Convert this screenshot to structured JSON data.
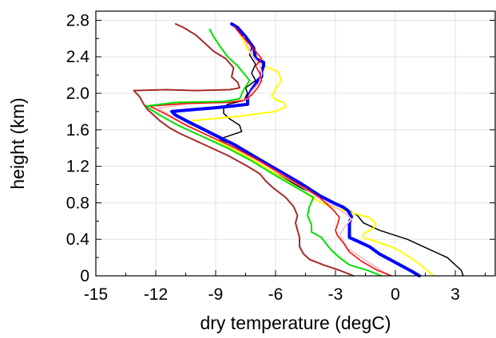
{
  "chart_data": {
    "type": "line",
    "title": "",
    "xlabel": "dry temperature (degC)",
    "ylabel": "height (km)",
    "xlim": [
      -15,
      5
    ],
    "ylim": [
      0,
      2.9
    ],
    "x_ticks": [
      -15,
      -12,
      -9,
      -6,
      -3,
      0,
      3
    ],
    "x_tick_labels": [
      "-15",
      "-12",
      "-9",
      "-6",
      "-3",
      "0",
      "3"
    ],
    "y_ticks": [
      0,
      0.4,
      0.8,
      1.2,
      1.6,
      2.0,
      2.4,
      2.8
    ],
    "y_tick_labels": [
      "0",
      "0.4",
      "0.8",
      "1.2",
      "1.6",
      "2.0",
      "2.4",
      "2.8"
    ],
    "grid": true,
    "legend": "none",
    "series": [
      {
        "color": "#000000",
        "width": 1.5,
        "points": [
          [
            3.4,
            0
          ],
          [
            3.3,
            0.06
          ],
          [
            3.1,
            0.1
          ],
          [
            2.6,
            0.2
          ],
          [
            1.6,
            0.3
          ],
          [
            0.6,
            0.4
          ],
          [
            -0.8,
            0.5
          ],
          [
            -1.6,
            0.58
          ],
          [
            -1.9,
            0.66
          ],
          [
            -2.6,
            0.75
          ],
          [
            -3.6,
            0.85
          ],
          [
            -4.6,
            0.95
          ],
          [
            -5.8,
            1.1
          ],
          [
            -7,
            1.25
          ],
          [
            -8,
            1.38
          ],
          [
            -8.8,
            1.5
          ],
          [
            -7.7,
            1.58
          ],
          [
            -7.8,
            1.65
          ],
          [
            -8.3,
            1.72
          ],
          [
            -8.6,
            1.78
          ],
          [
            -8.6,
            1.84
          ],
          [
            -8.4,
            1.88
          ],
          [
            -7.6,
            1.92
          ],
          [
            -7.4,
            2.0
          ],
          [
            -7.5,
            2.06
          ],
          [
            -7,
            2.14
          ],
          [
            -7.2,
            2.22
          ],
          [
            -7,
            2.32
          ],
          [
            -7.3,
            2.42
          ],
          [
            -7.2,
            2.5
          ],
          [
            -7.4,
            2.58
          ],
          [
            -7.6,
            2.66
          ]
        ]
      },
      {
        "color": "#ffff00",
        "width": 2,
        "points": [
          [
            1.9,
            0
          ],
          [
            1.6,
            0.06
          ],
          [
            1.2,
            0.13
          ],
          [
            0.6,
            0.22
          ],
          [
            0,
            0.3
          ],
          [
            -1,
            0.38
          ],
          [
            -1.6,
            0.42
          ],
          [
            -1.6,
            0.46
          ],
          [
            -1.1,
            0.52
          ],
          [
            -1,
            0.58
          ],
          [
            -1.3,
            0.64
          ],
          [
            -2,
            0.68
          ],
          [
            -2.6,
            0.72
          ],
          [
            -3.5,
            0.78
          ],
          [
            -4.2,
            0.86
          ],
          [
            -5,
            0.98
          ],
          [
            -6,
            1.12
          ],
          [
            -7.2,
            1.28
          ],
          [
            -8.4,
            1.42
          ],
          [
            -9.6,
            1.56
          ],
          [
            -10.3,
            1.64
          ],
          [
            -10.2,
            1.7
          ],
          [
            -7.8,
            1.75
          ],
          [
            -6,
            1.8
          ],
          [
            -5.5,
            1.85
          ],
          [
            -5.6,
            1.9
          ],
          [
            -6,
            1.93
          ],
          [
            -6.2,
            1.97
          ],
          [
            -6,
            2.05
          ],
          [
            -5.7,
            2.14
          ],
          [
            -5.9,
            2.24
          ],
          [
            -6.6,
            2.3
          ],
          [
            -7,
            2.38
          ],
          [
            -7.4,
            2.48
          ],
          [
            -7.6,
            2.58
          ],
          [
            -7.8,
            2.66
          ],
          [
            -7.9,
            2.72
          ]
        ]
      },
      {
        "color": "#0000ff",
        "width": 4,
        "points": [
          [
            1.2,
            0
          ],
          [
            0.9,
            0.04
          ],
          [
            0.4,
            0.1
          ],
          [
            -0.2,
            0.17
          ],
          [
            -0.8,
            0.24
          ],
          [
            -1.3,
            0.32
          ],
          [
            -1.9,
            0.38
          ],
          [
            -2.3,
            0.42
          ],
          [
            -2.3,
            0.5
          ],
          [
            -2.3,
            0.58
          ],
          [
            -2.2,
            0.65
          ],
          [
            -2.4,
            0.72
          ],
          [
            -2.6,
            0.75
          ],
          [
            -3.1,
            0.8
          ],
          [
            -3.8,
            0.88
          ],
          [
            -4.8,
            1.02
          ],
          [
            -5.9,
            1.16
          ],
          [
            -7,
            1.3
          ],
          [
            -8,
            1.43
          ],
          [
            -9.2,
            1.56
          ],
          [
            -10.3,
            1.68
          ],
          [
            -11,
            1.76
          ],
          [
            -11.2,
            1.8
          ],
          [
            -10.2,
            1.82
          ],
          [
            -9.1,
            1.84
          ],
          [
            -8.2,
            1.86
          ],
          [
            -7.4,
            1.88
          ],
          [
            -7.4,
            1.95
          ],
          [
            -7.2,
            2.04
          ],
          [
            -7,
            2.1
          ],
          [
            -6.9,
            2.14
          ],
          [
            -6.7,
            2.18
          ],
          [
            -6.7,
            2.24
          ],
          [
            -6.6,
            2.3
          ],
          [
            -6.6,
            2.34
          ],
          [
            -7,
            2.38
          ],
          [
            -7.1,
            2.5
          ],
          [
            -7.5,
            2.62
          ],
          [
            -7.9,
            2.72
          ],
          [
            -8.2,
            2.76
          ]
        ]
      },
      {
        "color": "#ffc0cb",
        "width": 2,
        "points": [
          [
            -0.3,
            0
          ],
          [
            -1,
            0.1
          ],
          [
            -1.7,
            0.2
          ],
          [
            -2.4,
            0.3
          ],
          [
            -2.6,
            0.38
          ],
          [
            -2.8,
            0.45
          ],
          [
            -2.5,
            0.55
          ],
          [
            -2.2,
            0.62
          ],
          [
            -2.5,
            0.68
          ],
          [
            -2.9,
            0.74
          ],
          [
            -3.6,
            0.82
          ],
          [
            -4.7,
            0.98
          ],
          [
            -5.9,
            1.14
          ],
          [
            -7.2,
            1.3
          ],
          [
            -8.4,
            1.44
          ],
          [
            -9.6,
            1.56
          ],
          [
            -10.7,
            1.68
          ],
          [
            -11.3,
            1.76
          ],
          [
            -11.9,
            1.84
          ],
          [
            -10.5,
            1.88
          ],
          [
            -8.6,
            1.9
          ],
          [
            -7.4,
            1.94
          ],
          [
            -7.2,
            2.02
          ],
          [
            -6.8,
            2.12
          ],
          [
            -6.7,
            2.22
          ],
          [
            -6.8,
            2.32
          ],
          [
            -7.2,
            2.42
          ],
          [
            -7.4,
            2.52
          ],
          [
            -7.6,
            2.62
          ]
        ]
      },
      {
        "color": "#ff0000",
        "width": 1.5,
        "points": [
          [
            -0.2,
            0
          ],
          [
            -0.9,
            0.06
          ],
          [
            -1.7,
            0.16
          ],
          [
            -2.3,
            0.26
          ],
          [
            -2.6,
            0.36
          ],
          [
            -2.9,
            0.44
          ],
          [
            -3,
            0.5
          ],
          [
            -2.9,
            0.56
          ],
          [
            -2.8,
            0.64
          ],
          [
            -3.1,
            0.72
          ],
          [
            -3.5,
            0.8
          ],
          [
            -3.8,
            0.86
          ],
          [
            -4.5,
            0.96
          ],
          [
            -5.6,
            1.1
          ],
          [
            -6.8,
            1.26
          ],
          [
            -8,
            1.4
          ],
          [
            -9.2,
            1.52
          ],
          [
            -10.4,
            1.64
          ],
          [
            -11.4,
            1.76
          ],
          [
            -12.3,
            1.86
          ],
          [
            -10.4,
            1.89
          ],
          [
            -8.4,
            1.9
          ],
          [
            -7.6,
            1.92
          ],
          [
            -7.2,
            1.98
          ],
          [
            -6.9,
            2.06
          ],
          [
            -6.7,
            2.14
          ],
          [
            -6.8,
            2.22
          ],
          [
            -7,
            2.3
          ],
          [
            -6.7,
            2.38
          ],
          [
            -7,
            2.46
          ],
          [
            -7.4,
            2.56
          ],
          [
            -7.8,
            2.66
          ],
          [
            -8.1,
            2.74
          ]
        ]
      },
      {
        "color": "#00e000",
        "width": 2,
        "points": [
          [
            -0.7,
            0
          ],
          [
            -1.4,
            0.06
          ],
          [
            -2.3,
            0.12
          ],
          [
            -2.8,
            0.2
          ],
          [
            -3.2,
            0.28
          ],
          [
            -3.5,
            0.36
          ],
          [
            -3.7,
            0.42
          ],
          [
            -4.2,
            0.48
          ],
          [
            -4.2,
            0.56
          ],
          [
            -4.4,
            0.66
          ],
          [
            -4.3,
            0.76
          ],
          [
            -4.1,
            0.86
          ],
          [
            -4.9,
            0.96
          ],
          [
            -6,
            1.1
          ],
          [
            -7.2,
            1.26
          ],
          [
            -8.4,
            1.4
          ],
          [
            -9.6,
            1.52
          ],
          [
            -10.8,
            1.64
          ],
          [
            -11.8,
            1.76
          ],
          [
            -12.5,
            1.86
          ],
          [
            -11,
            1.9
          ],
          [
            -8.6,
            1.91
          ],
          [
            -7.8,
            1.94
          ],
          [
            -7.6,
            2.04
          ],
          [
            -7.3,
            2.14
          ],
          [
            -7.6,
            2.22
          ],
          [
            -7.9,
            2.3
          ],
          [
            -8.4,
            2.4
          ],
          [
            -8.8,
            2.52
          ],
          [
            -9.1,
            2.62
          ],
          [
            -9.3,
            2.7
          ]
        ]
      },
      {
        "color": "#a52a2a",
        "width": 2,
        "points": [
          [
            -2.1,
            0
          ],
          [
            -2.8,
            0.06
          ],
          [
            -3.6,
            0.12
          ],
          [
            -4.3,
            0.18
          ],
          [
            -4.6,
            0.24
          ],
          [
            -4.8,
            0.32
          ],
          [
            -4.8,
            0.42
          ],
          [
            -4.9,
            0.5
          ],
          [
            -5,
            0.58
          ],
          [
            -4.9,
            0.66
          ],
          [
            -5.1,
            0.76
          ],
          [
            -5.5,
            0.86
          ],
          [
            -6.1,
            0.96
          ],
          [
            -6.5,
            1.04
          ],
          [
            -6.8,
            1.12
          ],
          [
            -7.4,
            1.2
          ],
          [
            -8.4,
            1.32
          ],
          [
            -9.6,
            1.44
          ],
          [
            -10.8,
            1.56
          ],
          [
            -11.3,
            1.62
          ],
          [
            -11.8,
            1.7
          ],
          [
            -12.4,
            1.82
          ],
          [
            -12.6,
            1.88
          ],
          [
            -12.8,
            1.96
          ],
          [
            -13.1,
            2.03
          ],
          [
            -11.5,
            2.04
          ],
          [
            -10,
            2.03
          ],
          [
            -8.3,
            2.04
          ],
          [
            -7.8,
            2.06
          ],
          [
            -7.9,
            2.12
          ],
          [
            -8.2,
            2.18
          ],
          [
            -8.1,
            2.28
          ],
          [
            -8.5,
            2.38
          ],
          [
            -9.1,
            2.46
          ],
          [
            -9.6,
            2.56
          ],
          [
            -10,
            2.64
          ],
          [
            -10.6,
            2.72
          ],
          [
            -11,
            2.76
          ]
        ]
      }
    ]
  }
}
